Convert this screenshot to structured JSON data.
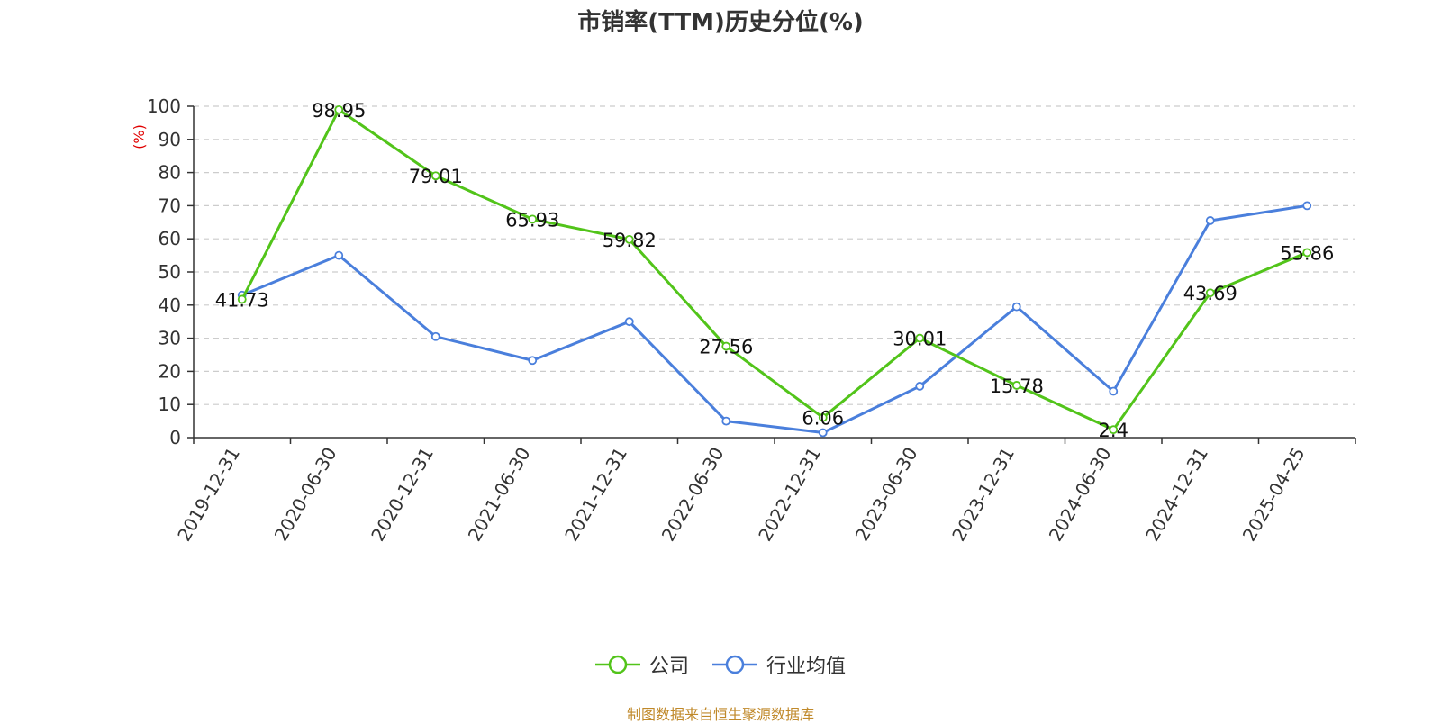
{
  "chart_data": {
    "type": "line",
    "title": "市销率(TTM)历史分位(%)",
    "ylabel": "(%)",
    "xlabel": "",
    "ylim": [
      0,
      100
    ],
    "yticks": [
      0,
      10,
      20,
      30,
      40,
      50,
      60,
      70,
      80,
      90,
      100
    ],
    "grid": true,
    "legend_position": "bottom",
    "categories": [
      "2019-12-31",
      "2020-06-30",
      "2020-12-31",
      "2021-06-30",
      "2021-12-31",
      "2022-06-30",
      "2022-12-31",
      "2023-06-30",
      "2023-12-31",
      "2024-06-30",
      "2024-12-31",
      "2025-04-25"
    ],
    "series": [
      {
        "name": "公司",
        "color": "#52c41a",
        "values": [
          41.73,
          98.95,
          79.01,
          65.93,
          59.82,
          27.56,
          6.06,
          30.01,
          15.78,
          2.4,
          43.69,
          55.86
        ],
        "data_labels": [
          "41.73",
          "98.95",
          "79.01",
          "65.93",
          "59.82",
          "27.56",
          "6.06",
          "30.01",
          "15.78",
          "2.4",
          "43.69",
          "55.86"
        ]
      },
      {
        "name": "行业均值",
        "color": "#4a7fdc",
        "values": [
          43,
          55,
          30.5,
          23.3,
          35,
          5,
          1.5,
          15.5,
          39.5,
          14,
          65.5,
          70
        ]
      }
    ]
  },
  "source_note": "制图数据来自恒生聚源数据库"
}
